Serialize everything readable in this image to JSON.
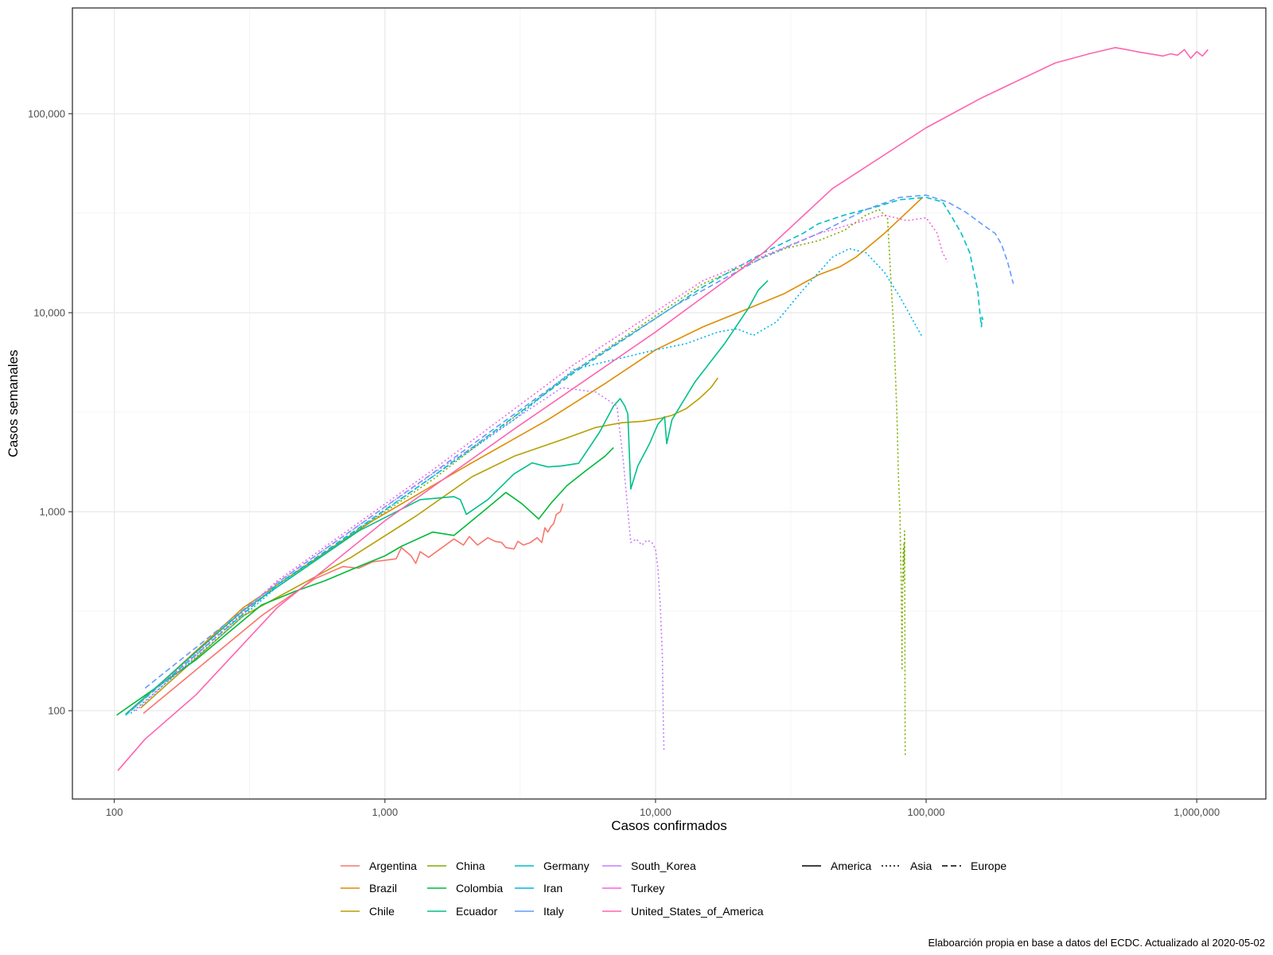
{
  "chart_data": {
    "type": "line",
    "xlabel": "Casos confirmados",
    "ylabel": "Casos semanales",
    "x_scale": "log",
    "y_scale": "log",
    "xlim": [
      70,
      1800000
    ],
    "ylim": [
      36,
      340000
    ],
    "x_ticks": [
      100,
      1000,
      10000,
      100000,
      1000000
    ],
    "x_tick_labels": [
      "100",
      "1,000",
      "10,000",
      "100,000",
      "1,000,000"
    ],
    "y_ticks": [
      100,
      1000,
      10000,
      100000
    ],
    "y_tick_labels": [
      "100",
      "1,000",
      "10,000",
      "100,000"
    ],
    "grid": true,
    "legend_position": "bottom",
    "caption": "Elaboarción propia en base a datos del ECDC.  Actualizado al  2020-05-02",
    "linetype_legend": [
      {
        "label": "America",
        "dash": "solid"
      },
      {
        "label": "Asia",
        "dash": "dotted"
      },
      {
        "label": "Europe",
        "dash": "dashed"
      }
    ],
    "series": [
      {
        "name": "Argentina",
        "color": "#F8766D",
        "dash": "solid",
        "points": [
          [
            128,
            97
          ],
          [
            200,
            160
          ],
          [
            350,
            300
          ],
          [
            550,
            460
          ],
          [
            700,
            530
          ],
          [
            800,
            520
          ],
          [
            900,
            560
          ],
          [
            1100,
            580
          ],
          [
            1150,
            660
          ],
          [
            1250,
            600
          ],
          [
            1300,
            550
          ],
          [
            1350,
            630
          ],
          [
            1450,
            590
          ],
          [
            1600,
            650
          ],
          [
            1800,
            730
          ],
          [
            1950,
            680
          ],
          [
            2050,
            750
          ],
          [
            2200,
            680
          ],
          [
            2400,
            740
          ],
          [
            2550,
            710
          ],
          [
            2700,
            700
          ],
          [
            2800,
            660
          ],
          [
            3000,
            650
          ],
          [
            3100,
            710
          ],
          [
            3250,
            680
          ],
          [
            3450,
            700
          ],
          [
            3650,
            740
          ],
          [
            3800,
            700
          ],
          [
            3900,
            830
          ],
          [
            4000,
            790
          ],
          [
            4100,
            840
          ],
          [
            4200,
            870
          ],
          [
            4300,
            970
          ],
          [
            4450,
            1000
          ],
          [
            4550,
            1100
          ]
        ]
      },
      {
        "name": "Brazil",
        "color": "#DE8C00",
        "dash": "solid",
        "points": [
          [
            115,
            100
          ],
          [
            300,
            330
          ],
          [
            900,
            900
          ],
          [
            2000,
            1700
          ],
          [
            4000,
            2900
          ],
          [
            6500,
            4400
          ],
          [
            10000,
            6500
          ],
          [
            15000,
            8500
          ],
          [
            22000,
            10500
          ],
          [
            30000,
            12500
          ],
          [
            40000,
            15500
          ],
          [
            48000,
            17000
          ],
          [
            55000,
            19000
          ],
          [
            70000,
            25000
          ],
          [
            85000,
            32000
          ],
          [
            97000,
            38000
          ]
        ]
      },
      {
        "name": "Chile",
        "color": "#B79F00",
        "dash": "solid",
        "points": [
          [
            125,
            103
          ],
          [
            300,
            300
          ],
          [
            750,
            590
          ],
          [
            1300,
            950
          ],
          [
            2100,
            1500
          ],
          [
            3000,
            1900
          ],
          [
            4500,
            2300
          ],
          [
            6000,
            2650
          ],
          [
            7500,
            2800
          ],
          [
            9000,
            2850
          ],
          [
            10500,
            2950
          ],
          [
            11500,
            3050
          ],
          [
            13000,
            3300
          ],
          [
            14500,
            3700
          ],
          [
            16000,
            4200
          ],
          [
            17000,
            4700
          ]
        ]
      },
      {
        "name": "China",
        "color": "#7CAE00",
        "dash": "dotted",
        "points": [
          [
            115,
            100
          ],
          [
            400,
            430
          ],
          [
            1500,
            1450
          ],
          [
            5000,
            5100
          ],
          [
            15000,
            14000
          ],
          [
            30000,
            21000
          ],
          [
            40000,
            23000
          ],
          [
            50000,
            26000
          ],
          [
            60000,
            31000
          ],
          [
            67000,
            33000
          ],
          [
            72000,
            30000
          ],
          [
            74000,
            15000
          ],
          [
            76000,
            8000
          ],
          [
            78000,
            3000
          ],
          [
            79000,
            1500
          ],
          [
            80000,
            1000
          ],
          [
            80500,
            600
          ],
          [
            81000,
            400
          ],
          [
            81200,
            250
          ],
          [
            81400,
            160
          ],
          [
            81700,
            300
          ],
          [
            82000,
            500
          ],
          [
            82300,
            650
          ],
          [
            82600,
            450
          ],
          [
            82800,
            700
          ],
          [
            83000,
            550
          ],
          [
            83200,
            800
          ],
          [
            83400,
            400
          ],
          [
            83500,
            200
          ],
          [
            83600,
            70
          ],
          [
            83700,
            60
          ]
        ]
      },
      {
        "name": "Colombia",
        "color": "#00BA38",
        "dash": "solid",
        "points": [
          [
            102,
            95
          ],
          [
            200,
            180
          ],
          [
            350,
            340
          ],
          [
            470,
            400
          ],
          [
            600,
            450
          ],
          [
            800,
            530
          ],
          [
            1000,
            600
          ],
          [
            1150,
            670
          ],
          [
            1500,
            790
          ],
          [
            1800,
            760
          ],
          [
            2300,
            1000
          ],
          [
            2800,
            1250
          ],
          [
            3200,
            1100
          ],
          [
            3700,
            920
          ],
          [
            4100,
            1100
          ],
          [
            4700,
            1350
          ],
          [
            5500,
            1600
          ],
          [
            6500,
            1900
          ],
          [
            7000,
            2100
          ]
        ]
      },
      {
        "name": "Ecuador",
        "color": "#00C08B",
        "dash": "solid",
        "points": [
          [
            110,
            96
          ],
          [
            300,
            320
          ],
          [
            800,
            800
          ],
          [
            1350,
            1150
          ],
          [
            1800,
            1190
          ],
          [
            1900,
            1150
          ],
          [
            2000,
            970
          ],
          [
            2400,
            1150
          ],
          [
            3000,
            1550
          ],
          [
            3500,
            1760
          ],
          [
            4000,
            1680
          ],
          [
            4500,
            1700
          ],
          [
            5200,
            1750
          ],
          [
            6200,
            2500
          ],
          [
            7000,
            3400
          ],
          [
            7400,
            3700
          ],
          [
            7700,
            3400
          ],
          [
            7900,
            3100
          ],
          [
            8100,
            1300
          ],
          [
            8600,
            1700
          ],
          [
            9500,
            2200
          ],
          [
            10200,
            2750
          ],
          [
            10800,
            3000
          ],
          [
            11000,
            2200
          ],
          [
            11500,
            2900
          ],
          [
            14000,
            4500
          ],
          [
            18000,
            7000
          ],
          [
            22000,
            10500
          ],
          [
            24000,
            13000
          ],
          [
            26000,
            14500
          ]
        ]
      },
      {
        "name": "Germany",
        "color": "#00BFC4",
        "dash": "dashed",
        "points": [
          [
            110,
            95
          ],
          [
            400,
            430
          ],
          [
            1500,
            1500
          ],
          [
            5000,
            5000
          ],
          [
            15000,
            13500
          ],
          [
            25000,
            20000
          ],
          [
            35000,
            25000
          ],
          [
            40000,
            28000
          ],
          [
            50000,
            31000
          ],
          [
            65000,
            34000
          ],
          [
            80000,
            37000
          ],
          [
            100000,
            38000
          ],
          [
            115000,
            36000
          ],
          [
            125000,
            30000
          ],
          [
            135000,
            25000
          ],
          [
            145000,
            20000
          ],
          [
            150000,
            16000
          ],
          [
            155000,
            13000
          ],
          [
            158000,
            10000
          ],
          [
            160000,
            8500
          ],
          [
            161000,
            9500
          ],
          [
            162000,
            9200
          ]
        ]
      },
      {
        "name": "Iran",
        "color": "#00B4F0",
        "dash": "dotted",
        "points": [
          [
            115,
            97
          ],
          [
            400,
            420
          ],
          [
            1500,
            1500
          ],
          [
            3000,
            2900
          ],
          [
            5000,
            5200
          ],
          [
            7000,
            5800
          ],
          [
            10000,
            6500
          ],
          [
            13000,
            7000
          ],
          [
            17000,
            8000
          ],
          [
            20000,
            8300
          ],
          [
            23000,
            7700
          ],
          [
            28000,
            9000
          ],
          [
            35000,
            13000
          ],
          [
            45000,
            19000
          ],
          [
            52000,
            21000
          ],
          [
            60000,
            20000
          ],
          [
            70000,
            16000
          ],
          [
            80000,
            12000
          ],
          [
            90000,
            9000
          ],
          [
            97000,
            7500
          ]
        ]
      },
      {
        "name": "Italy",
        "color": "#619CFF",
        "dash": "dashed",
        "points": [
          [
            130,
            130
          ],
          [
            400,
            440
          ],
          [
            1500,
            1560
          ],
          [
            5000,
            5100
          ],
          [
            12000,
            11000
          ],
          [
            25000,
            19000
          ],
          [
            40000,
            25000
          ],
          [
            60000,
            33000
          ],
          [
            80000,
            38000
          ],
          [
            100000,
            39000
          ],
          [
            120000,
            36000
          ],
          [
            140000,
            32000
          ],
          [
            160000,
            28000
          ],
          [
            180000,
            25000
          ],
          [
            190000,
            22000
          ],
          [
            200000,
            18000
          ],
          [
            210000,
            14000
          ]
        ]
      },
      {
        "name": "South_Korea",
        "color": "#C77CFF",
        "dash": "dotted",
        "points": [
          [
            115,
            100
          ],
          [
            400,
            440
          ],
          [
            1500,
            1550
          ],
          [
            4500,
            4200
          ],
          [
            6000,
            4000
          ],
          [
            7200,
            3400
          ],
          [
            7600,
            1800
          ],
          [
            8100,
            700
          ],
          [
            8500,
            730
          ],
          [
            8900,
            680
          ],
          [
            9300,
            720
          ],
          [
            9700,
            700
          ],
          [
            10000,
            650
          ],
          [
            10200,
            520
          ],
          [
            10400,
            350
          ],
          [
            10600,
            190
          ],
          [
            10700,
            80
          ],
          [
            10750,
            62
          ]
        ]
      },
      {
        "name": "Turkey",
        "color": "#F564E3",
        "dash": "dotted",
        "points": [
          [
            120,
            100
          ],
          [
            400,
            450
          ],
          [
            1500,
            1620
          ],
          [
            5000,
            5500
          ],
          [
            15000,
            14500
          ],
          [
            40000,
            25000
          ],
          [
            70000,
            31000
          ],
          [
            85000,
            29000
          ],
          [
            100000,
            30000
          ],
          [
            110000,
            25000
          ],
          [
            115000,
            20000
          ],
          [
            120000,
            18000
          ]
        ]
      },
      {
        "name": "United_States_of_America",
        "color": "#FF64B0",
        "dash": "solid",
        "points": [
          [
            103,
            50
          ],
          [
            130,
            72
          ],
          [
            200,
            120
          ],
          [
            400,
            330
          ],
          [
            1000,
            900
          ],
          [
            3000,
            2600
          ],
          [
            10000,
            8000
          ],
          [
            25000,
            20000
          ],
          [
            45000,
            42000
          ],
          [
            100000,
            85000
          ],
          [
            160000,
            120000
          ],
          [
            300000,
            180000
          ],
          [
            400000,
            200000
          ],
          [
            500000,
            215000
          ],
          [
            550000,
            210000
          ],
          [
            600000,
            205000
          ],
          [
            700000,
            198000
          ],
          [
            750000,
            195000
          ],
          [
            800000,
            200000
          ],
          [
            850000,
            197000
          ],
          [
            900000,
            210000
          ],
          [
            950000,
            190000
          ],
          [
            1000000,
            205000
          ],
          [
            1050000,
            195000
          ],
          [
            1100000,
            210000
          ]
        ]
      }
    ]
  }
}
